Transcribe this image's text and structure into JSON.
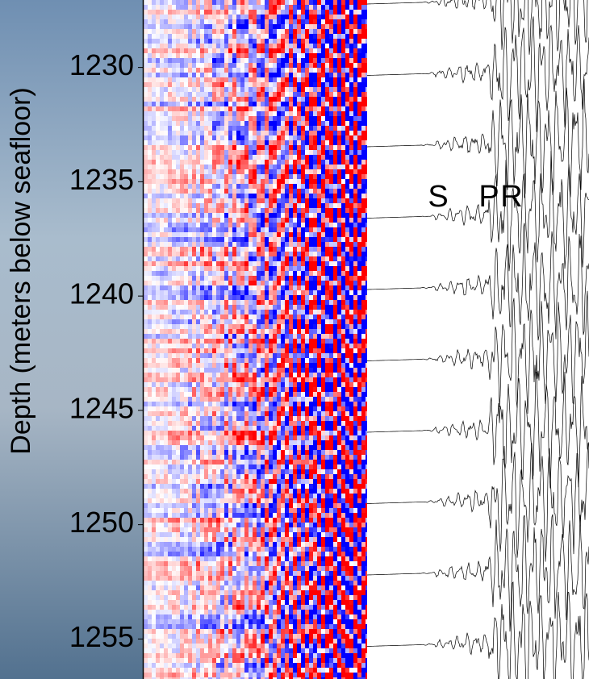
{
  "chart_data": {
    "type": "seismic",
    "ylabel": "Depth (meters below seafloor)",
    "ylim": [
      1227.05,
      1256.75
    ],
    "yticks": [
      1230,
      1235,
      1240,
      1245,
      1250,
      1255
    ],
    "annotations": [
      "S",
      "P",
      "R"
    ]
  }
}
